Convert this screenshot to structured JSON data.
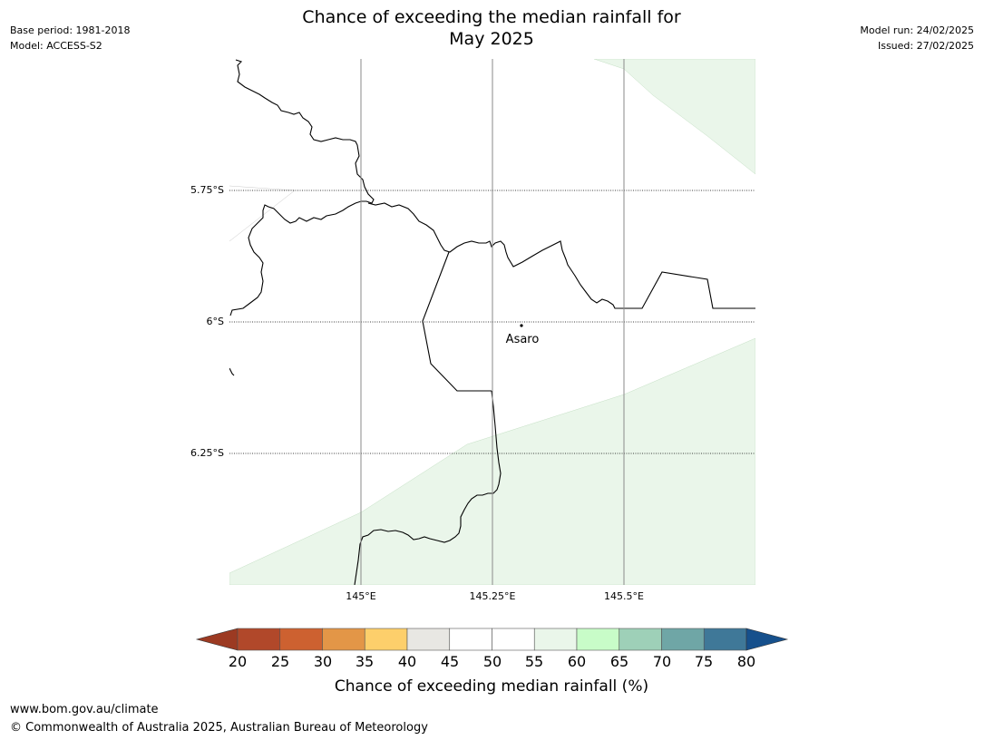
{
  "header": {
    "title_line1": "Chance of exceeding the median rainfall for",
    "title_line2": "May 2025",
    "base_period": "Base period: 1981-2018",
    "model": "Model: ACCESS-S2",
    "model_run": "Model run: 24/02/2025",
    "issued": "Issued: 27/02/2025"
  },
  "map": {
    "lat_labels": [
      "5.75°S",
      "6°S",
      "6.25°S"
    ],
    "lon_labels": [
      "145°E",
      "145.25°E",
      "145.5°E"
    ],
    "place": {
      "name": "Asaro"
    }
  },
  "colorbar": {
    "ticks": [
      "20",
      "25",
      "30",
      "35",
      "40",
      "45",
      "50",
      "55",
      "60",
      "65",
      "70",
      "75",
      "80"
    ],
    "label": "Chance of exceeding median rainfall (%)",
    "colors": [
      "#9c3a22",
      "#b1482a",
      "#cd6130",
      "#e39647",
      "#fdcf6b",
      "#e8e7e3",
      "#ffffff",
      "#ffffff",
      "#eaf6ea",
      "#c8fcc8",
      "#9ed0b8",
      "#6fa6a6",
      "#3f7898",
      "#16508c"
    ]
  },
  "footer": {
    "url": "www.bom.gov.au/climate",
    "copyright": "© Commonwealth of Australia 2025, Australian Bureau of Meteorology"
  }
}
